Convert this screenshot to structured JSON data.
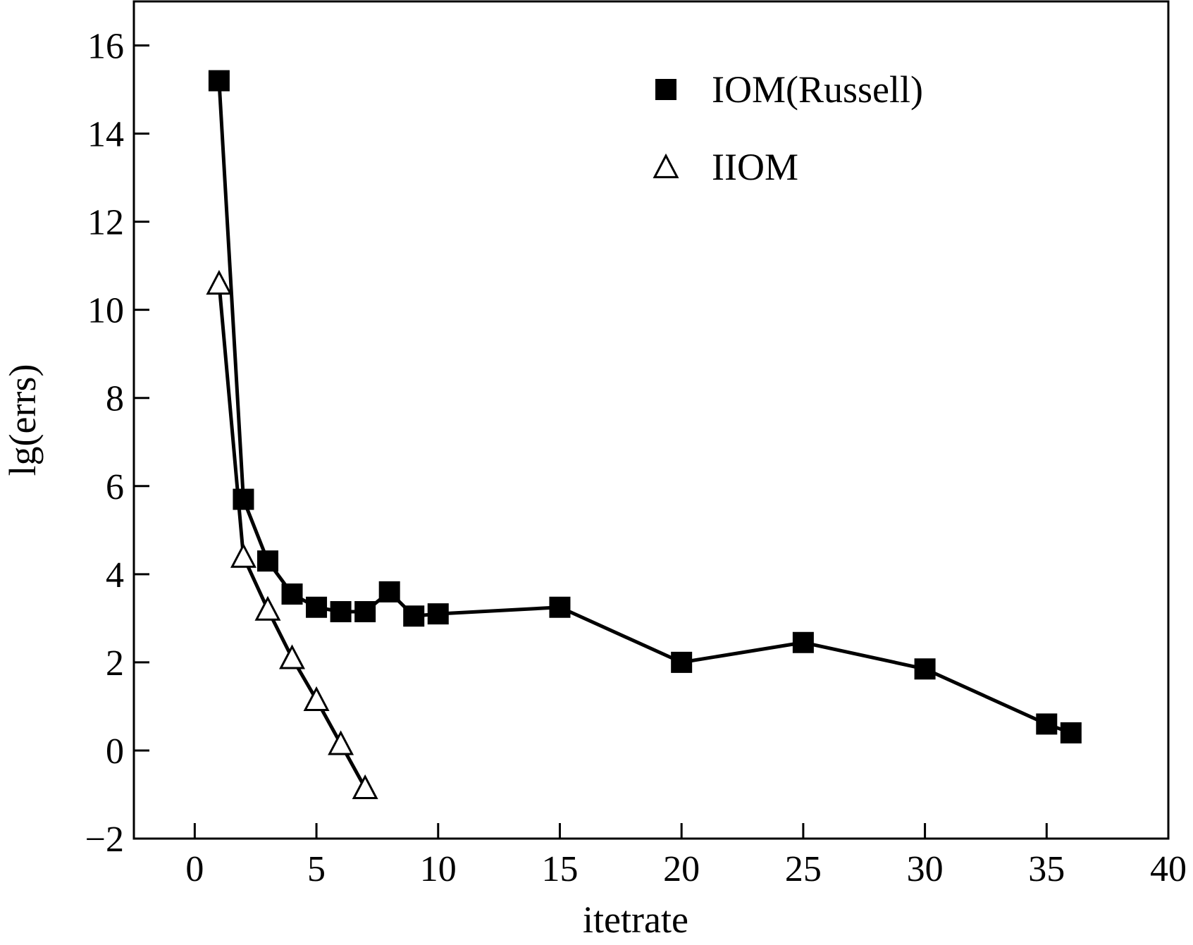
{
  "chart_data": {
    "type": "line",
    "xlabel": "itetrate",
    "ylabel": "lg(errs)",
    "xlim": [
      -2.5,
      40
    ],
    "ylim": [
      -2,
      17
    ],
    "xticks": [
      0,
      5,
      10,
      15,
      20,
      25,
      30,
      35,
      40
    ],
    "yticks": [
      -2,
      0,
      2,
      4,
      6,
      8,
      10,
      12,
      14,
      16
    ],
    "xtick_labels": [
      "0",
      "5",
      "10",
      "15",
      "20",
      "25",
      "30",
      "35",
      "40"
    ],
    "ytick_labels": [
      "−2",
      "0",
      "2",
      "4",
      "6",
      "8",
      "10",
      "12",
      "14",
      "16"
    ],
    "grid": false,
    "legend_position": "top-right",
    "series": [
      {
        "name": "IOM(Russell)",
        "marker": "filled-square",
        "color": "#000000",
        "x": [
          1,
          2,
          3,
          4,
          5,
          6,
          7,
          8,
          9,
          10,
          15,
          20,
          25,
          30,
          35,
          36
        ],
        "y": [
          15.2,
          5.7,
          4.3,
          3.55,
          3.25,
          3.15,
          3.15,
          3.6,
          3.05,
          3.1,
          3.25,
          2.0,
          2.45,
          1.85,
          0.6,
          0.4
        ]
      },
      {
        "name": "IIOM",
        "marker": "open-triangle",
        "color": "#000000",
        "x": [
          1,
          2,
          3,
          4,
          5,
          6,
          7
        ],
        "y": [
          10.6,
          4.4,
          3.2,
          2.1,
          1.15,
          0.15,
          -0.85
        ]
      }
    ]
  }
}
